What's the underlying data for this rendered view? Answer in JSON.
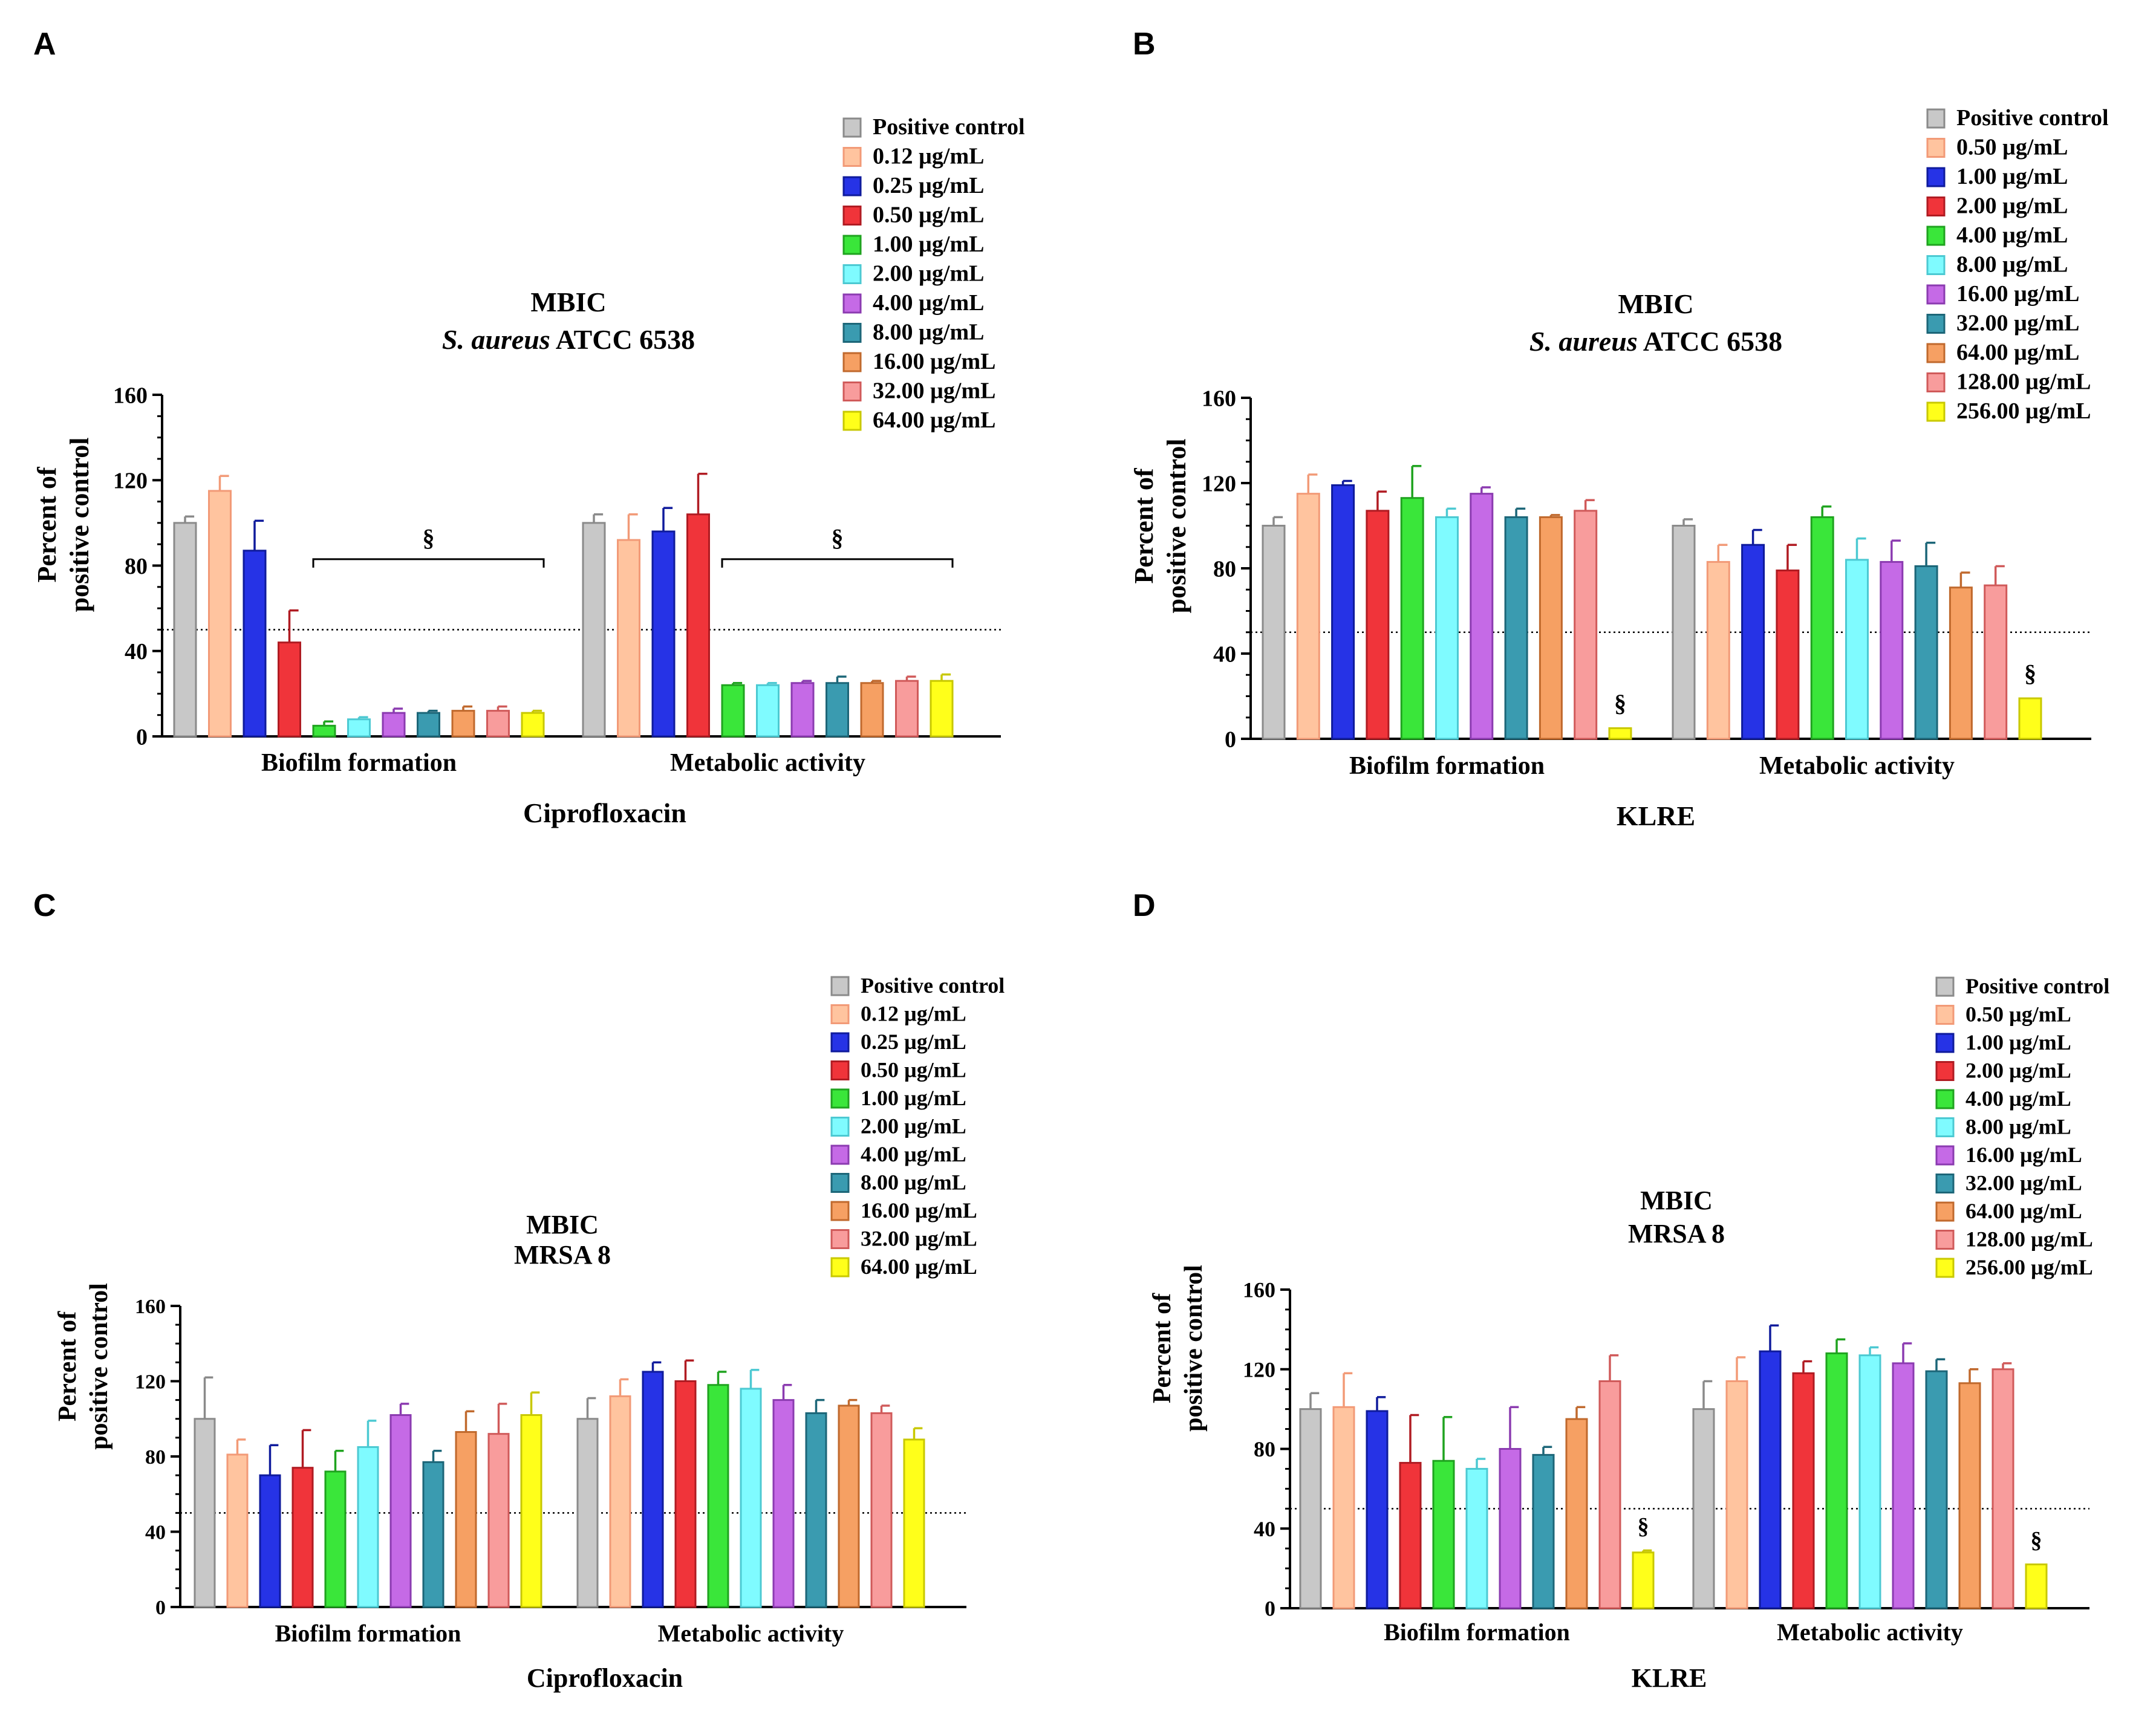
{
  "figure": {
    "mean_line_value": 50,
    "significance_symbol": "§"
  },
  "colors": {
    "Positive control": "#c8c8c8",
    "0.12 µg/mL": "#ffc49f",
    "0.25 µg/mL": "#2633e6",
    "0.50 µg/mL": "#f0343a",
    "1.00 µg/mL": "#3ae63a",
    "2.00 µg/mL": "#7ffbff",
    "4.00 µg/mL": "#c56ae6",
    "8.00 µg/mL": "#3a9bb0",
    "16.00 µg/mL": "#f6a063",
    "32.00 µg/mL": "#f89c9c",
    "64.00 µg/mL": "#ffff1a",
    "series_B": [
      "#c8c8c8",
      "#ffc49f",
      "#2633e6",
      "#f0343a",
      "#3ae63a",
      "#7ffbff",
      "#c56ae6",
      "#3a9bb0",
      "#f6a063",
      "#f89c9c",
      "#ffff1a"
    ],
    "series_B_dark": [
      "#8a8a8a",
      "#f29a77",
      "#0f1b9c",
      "#b01b22",
      "#1fa31f",
      "#4cc9d2",
      "#8b3bb0",
      "#1c6678",
      "#c0692d",
      "#d05a5a",
      "#c8c800"
    ]
  },
  "chart_data": [
    {
      "panel": "A",
      "type": "bar",
      "title_line1": "MBIC",
      "title_italic": "S. aureus",
      "title_rest": " ATCC 6538",
      "ylabel_line1": "Percent of",
      "ylabel_line2": "positive control",
      "xlabel": "Ciprofloxacin",
      "ylim": [
        0,
        160
      ],
      "yticks": [
        "0",
        "40",
        "80",
        "120",
        "160"
      ],
      "categories": [
        "Biofilm formation",
        "Metabolic activity"
      ],
      "series": [
        {
          "name": "Positive control",
          "values": [
            100,
            100
          ],
          "errors": [
            3,
            4
          ]
        },
        {
          "name": "0.12 µg/mL",
          "values": [
            115,
            92
          ],
          "errors": [
            7,
            12
          ]
        },
        {
          "name": "0.25 µg/mL",
          "values": [
            87,
            96
          ],
          "errors": [
            14,
            11
          ]
        },
        {
          "name": "0.50 µg/mL",
          "values": [
            44,
            104
          ],
          "errors": [
            15,
            19
          ]
        },
        {
          "name": "1.00 µg/mL",
          "values": [
            5,
            24
          ],
          "errors": [
            2,
            1
          ]
        },
        {
          "name": "2.00 µg/mL",
          "values": [
            8,
            24
          ],
          "errors": [
            1,
            1
          ]
        },
        {
          "name": "4.00 µg/mL",
          "values": [
            11,
            25
          ],
          "errors": [
            2,
            1
          ]
        },
        {
          "name": "8.00 µg/mL",
          "values": [
            11,
            25
          ],
          "errors": [
            1,
            3
          ]
        },
        {
          "name": "16.00 µg/mL",
          "values": [
            12,
            25
          ],
          "errors": [
            2,
            1
          ]
        },
        {
          "name": "32.00 µg/mL",
          "values": [
            12,
            26
          ],
          "errors": [
            2,
            2
          ]
        },
        {
          "name": "64.00 µg/mL",
          "values": [
            11,
            26
          ],
          "errors": [
            1,
            3
          ]
        }
      ],
      "brackets": [
        {
          "group": 0,
          "from_series": 4,
          "to_series": 10,
          "value": 83,
          "label": "§"
        },
        {
          "group": 1,
          "from_series": 4,
          "to_series": 10,
          "value": 83,
          "label": "§"
        }
      ],
      "bar_marks": []
    },
    {
      "panel": "B",
      "type": "bar",
      "title_line1": "MBIC",
      "title_italic": "S. aureus",
      "title_rest": " ATCC 6538",
      "ylabel_line1": "Percent of",
      "ylabel_line2": "positive control",
      "xlabel": "KLRE",
      "ylim": [
        0,
        160
      ],
      "yticks": [
        "0",
        "40",
        "80",
        "120",
        "160"
      ],
      "categories": [
        "Biofilm formation",
        "Metabolic activity"
      ],
      "series": [
        {
          "name": "Positive control",
          "values": [
            100,
            100
          ],
          "errors": [
            4,
            3
          ]
        },
        {
          "name": "0.50 µg/mL",
          "values": [
            115,
            83
          ],
          "errors": [
            9,
            8
          ]
        },
        {
          "name": "1.00 µg/mL",
          "values": [
            119,
            91
          ],
          "errors": [
            2,
            7
          ]
        },
        {
          "name": "2.00 µg/mL",
          "values": [
            107,
            79
          ],
          "errors": [
            9,
            12
          ]
        },
        {
          "name": "4.00 µg/mL",
          "values": [
            113,
            104
          ],
          "errors": [
            15,
            5
          ]
        },
        {
          "name": "8.00 µg/mL",
          "values": [
            104,
            84
          ],
          "errors": [
            4,
            10
          ]
        },
        {
          "name": "16.00 µg/mL",
          "values": [
            115,
            83
          ],
          "errors": [
            3,
            10
          ]
        },
        {
          "name": "32.00 µg/mL",
          "values": [
            104,
            81
          ],
          "errors": [
            4,
            11
          ]
        },
        {
          "name": "64.00 µg/mL",
          "values": [
            104,
            71
          ],
          "errors": [
            1,
            7
          ]
        },
        {
          "name": "128.00 µg/mL",
          "values": [
            107,
            72
          ],
          "errors": [
            5,
            9
          ]
        },
        {
          "name": "256.00 µg/mL",
          "values": [
            5,
            19
          ],
          "errors": [
            0,
            0
          ]
        }
      ],
      "brackets": [],
      "bar_marks": [
        {
          "group": 0,
          "series": 10,
          "label": "§"
        },
        {
          "group": 1,
          "series": 10,
          "label": "§"
        }
      ]
    },
    {
      "panel": "C",
      "type": "bar",
      "title_line1": "MBIC",
      "title_italic": "",
      "title_rest": "MRSA 8",
      "ylabel_line1": "Percent of",
      "ylabel_line2": "positive control",
      "xlabel": "Ciprofloxacin",
      "ylim": [
        0,
        160
      ],
      "yticks": [
        "0",
        "40",
        "80",
        "120",
        "160"
      ],
      "categories": [
        "Biofilm formation",
        "Metabolic activity"
      ],
      "series": [
        {
          "name": "Positive control",
          "values": [
            100,
            100
          ],
          "errors": [
            22,
            11
          ]
        },
        {
          "name": "0.12 µg/mL",
          "values": [
            81,
            112
          ],
          "errors": [
            8,
            9
          ]
        },
        {
          "name": "0.25 µg/mL",
          "values": [
            70,
            125
          ],
          "errors": [
            16,
            5
          ]
        },
        {
          "name": "0.50 µg/mL",
          "values": [
            74,
            120
          ],
          "errors": [
            20,
            11
          ]
        },
        {
          "name": "1.00 µg/mL",
          "values": [
            72,
            118
          ],
          "errors": [
            11,
            7
          ]
        },
        {
          "name": "2.00 µg/mL",
          "values": [
            85,
            116
          ],
          "errors": [
            14,
            10
          ]
        },
        {
          "name": "4.00 µg/mL",
          "values": [
            102,
            110
          ],
          "errors": [
            6,
            8
          ]
        },
        {
          "name": "8.00 µg/mL",
          "values": [
            77,
            103
          ],
          "errors": [
            6,
            7
          ]
        },
        {
          "name": "16.00 µg/mL",
          "values": [
            93,
            107
          ],
          "errors": [
            11,
            3
          ]
        },
        {
          "name": "32.00 µg/mL",
          "values": [
            92,
            103
          ],
          "errors": [
            16,
            4
          ]
        },
        {
          "name": "64.00 µg/mL",
          "values": [
            102,
            89
          ],
          "errors": [
            12,
            6
          ]
        }
      ],
      "brackets": [],
      "bar_marks": []
    },
    {
      "panel": "D",
      "type": "bar",
      "title_line1": "MBIC",
      "title_italic": "",
      "title_rest": "MRSA 8",
      "ylabel_line1": "Percent of",
      "ylabel_line2": "positive control",
      "xlabel": "KLRE",
      "ylim": [
        0,
        160
      ],
      "yticks": [
        "0",
        "40",
        "80",
        "120",
        "160"
      ],
      "categories": [
        "Biofilm formation",
        "Metabolic activity"
      ],
      "series": [
        {
          "name": "Positive control",
          "values": [
            100,
            100
          ],
          "errors": [
            8,
            14
          ]
        },
        {
          "name": "0.50 µg/mL",
          "values": [
            101,
            114
          ],
          "errors": [
            17,
            12
          ]
        },
        {
          "name": "1.00 µg/mL",
          "values": [
            99,
            129
          ],
          "errors": [
            7,
            13
          ]
        },
        {
          "name": "2.00 µg/mL",
          "values": [
            73,
            118
          ],
          "errors": [
            24,
            6
          ]
        },
        {
          "name": "4.00 µg/mL",
          "values": [
            74,
            128
          ],
          "errors": [
            22,
            7
          ]
        },
        {
          "name": "8.00 µg/mL",
          "values": [
            70,
            127
          ],
          "errors": [
            5,
            4
          ]
        },
        {
          "name": "16.00 µg/mL",
          "values": [
            80,
            123
          ],
          "errors": [
            21,
            10
          ]
        },
        {
          "name": "32.00 µg/mL",
          "values": [
            77,
            119
          ],
          "errors": [
            4,
            6
          ]
        },
        {
          "name": "64.00 µg/mL",
          "values": [
            95,
            113
          ],
          "errors": [
            6,
            7
          ]
        },
        {
          "name": "128.00 µg/mL",
          "values": [
            114,
            120
          ],
          "errors": [
            13,
            3
          ]
        },
        {
          "name": "256.00 µg/mL",
          "values": [
            28,
            22
          ],
          "errors": [
            1,
            0
          ]
        }
      ],
      "brackets": [],
      "bar_marks": [
        {
          "group": 0,
          "series": 10,
          "label": "§"
        },
        {
          "group": 1,
          "series": 10,
          "label": "§"
        }
      ]
    }
  ]
}
